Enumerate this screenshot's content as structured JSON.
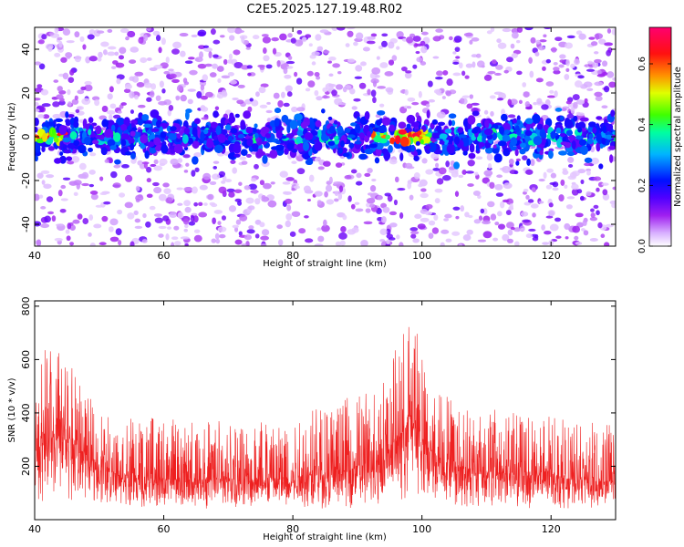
{
  "figure": {
    "title": "C2E5.2025.127.19.48.R02"
  },
  "chart_data": [
    {
      "type": "heatmap",
      "xlabel": "Height of straight line (km)",
      "ylabel": "Frequency (Hz)",
      "xlim": [
        40,
        130
      ],
      "ylim": [
        -50,
        50
      ],
      "xticks": [
        40,
        60,
        80,
        100,
        120
      ],
      "yticks": [
        -40,
        -20,
        0,
        20,
        40
      ],
      "colorbar": {
        "label": "Normalized spectral amplitude",
        "range": [
          0.0,
          0.72
        ],
        "ticks": [
          0.0,
          0.2,
          0.4,
          0.6
        ],
        "colormap": [
          "#ffffff",
          "#e6c8ff",
          "#a020f0",
          "#6400ff",
          "#0000ff",
          "#00c8ff",
          "#00ff80",
          "#80ff00",
          "#ffff00",
          "#ff8000",
          "#ff0000",
          "#ff0066"
        ]
      },
      "grid": false,
      "ridge": {
        "center_frequency": 0,
        "description_values": {
          "peak_heights": [
            41,
            42,
            43,
            94,
            96,
            97,
            99,
            100
          ]
        }
      }
    },
    {
      "type": "line",
      "xlabel": "Height of straight line (km)",
      "ylabel": "SNR (10 * v/v)",
      "xlim": [
        40,
        130
      ],
      "ylim": [
        0,
        820
      ],
      "xticks": [
        40,
        60,
        80,
        100,
        120
      ],
      "yticks": [
        200,
        400,
        600,
        800
      ],
      "color": "#ee2020",
      "grid": false,
      "envelope": {
        "x": [
          40,
          42,
          44,
          46,
          48,
          50,
          55,
          60,
          65,
          70,
          75,
          80,
          85,
          90,
          93,
          95,
          97,
          98,
          99,
          100,
          101,
          103,
          105,
          110,
          115,
          120,
          125,
          130
        ],
        "upper": [
          520,
          690,
          640,
          560,
          470,
          420,
          390,
          380,
          380,
          380,
          400,
          420,
          440,
          470,
          520,
          580,
          720,
          800,
          780,
          620,
          560,
          500,
          460,
          420,
          400,
          390,
          370,
          360
        ],
        "lower": [
          60,
          60,
          60,
          60,
          60,
          60,
          40,
          40,
          40,
          40,
          40,
          40,
          40,
          40,
          40,
          50,
          60,
          60,
          60,
          60,
          60,
          40,
          40,
          40,
          40,
          40,
          40,
          40
        ],
        "median": [
          300,
          330,
          320,
          280,
          240,
          200,
          160,
          150,
          150,
          150,
          150,
          160,
          170,
          190,
          220,
          260,
          330,
          380,
          360,
          300,
          260,
          220,
          200,
          180,
          170,
          160,
          150,
          140
        ]
      }
    }
  ]
}
